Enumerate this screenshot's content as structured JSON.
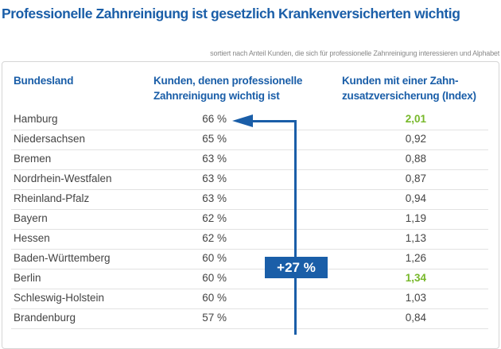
{
  "title": "Professionelle Zahnreinigung ist gesetzlich Krankenversicherten wichtig",
  "note": "sortiert nach Anteil Kunden, die sich für professionelle Zahnreinigung interessieren und Alphabet",
  "headers": {
    "state": "Bundesland",
    "share_line1": "Kunden, denen professionelle",
    "share_line2": "Zahnreinigung wichtig ist",
    "index_line1": "Kunden mit einer Zahn-",
    "index_line2": "zusatzversicherung (Index)"
  },
  "rows": [
    {
      "state": "Hamburg",
      "share": "66 %",
      "index": "2,01",
      "highlight": true
    },
    {
      "state": "Niedersachsen",
      "share": "65 %",
      "index": "0,92",
      "highlight": false
    },
    {
      "state": "Bremen",
      "share": "63 %",
      "index": "0,88",
      "highlight": false
    },
    {
      "state": "Nordrhein-Westfalen",
      "share": "63 %",
      "index": "0,87",
      "highlight": false
    },
    {
      "state": "Rheinland-Pfalz",
      "share": "63 %",
      "index": "0,94",
      "highlight": false
    },
    {
      "state": "Bayern",
      "share": "62 %",
      "index": "1,19",
      "highlight": false
    },
    {
      "state": "Hessen",
      "share": "62 %",
      "index": "1,13",
      "highlight": false
    },
    {
      "state": "Baden-Württemberg",
      "share": "60 %",
      "index": "1,26",
      "highlight": false
    },
    {
      "state": "Berlin",
      "share": "60 %",
      "index": "1,34",
      "highlight": true
    },
    {
      "state": "Schleswig-Holstein",
      "share": "60 %",
      "index": "1,03",
      "highlight": false
    },
    {
      "state": "Brandenburg",
      "share": "57 %",
      "index": "0,84",
      "highlight": false
    }
  ],
  "annotation": "+27 %",
  "colors": {
    "accent": "#1a5ea8",
    "highlight": "#77b82a"
  }
}
